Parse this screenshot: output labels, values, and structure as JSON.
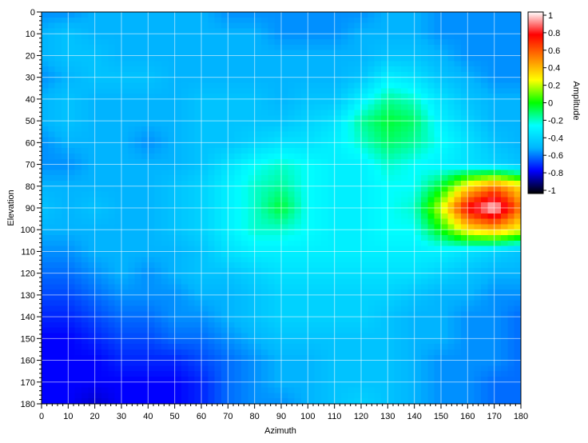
{
  "chart_data": {
    "type": "heatmap",
    "title": "",
    "xlabel": "Azimuth",
    "ylabel": "Elevation",
    "xlim": [
      0,
      180
    ],
    "ylim": [
      0,
      180
    ],
    "y_axis_inverted": true,
    "x_ticks": [
      0,
      10,
      20,
      30,
      40,
      50,
      60,
      70,
      80,
      90,
      100,
      110,
      120,
      130,
      140,
      150,
      160,
      170,
      180
    ],
    "y_ticks": [
      0,
      10,
      20,
      30,
      40,
      50,
      60,
      70,
      80,
      90,
      100,
      110,
      120,
      130,
      140,
      150,
      160,
      170,
      180
    ],
    "grid": true,
    "colorbar": {
      "label": "Amplitude",
      "range": [
        -1,
        1
      ],
      "ticks": [
        "1",
        "0.8",
        "0.6",
        "0.4",
        "0.2",
        "0",
        "-0.2",
        "-0.4",
        "-0.6",
        "-0.8",
        "-1"
      ],
      "colormap": [
        "#000000",
        "#0000ff",
        "#00b4ff",
        "#00ffff",
        "#00ff00",
        "#ffff00",
        "#ff8000",
        "#ff0000",
        "#ffffff"
      ]
    },
    "x_step": 10,
    "y_step": 10,
    "values": [
      [
        -0.55,
        -0.55,
        -0.5,
        -0.5,
        -0.5,
        -0.5,
        -0.5,
        -0.55,
        -0.55,
        -0.55,
        -0.55,
        -0.55,
        -0.55,
        -0.5,
        -0.5,
        -0.55,
        -0.55,
        -0.55,
        -0.55
      ],
      [
        -0.5,
        -0.45,
        -0.5,
        -0.5,
        -0.5,
        -0.5,
        -0.5,
        -0.5,
        -0.5,
        -0.55,
        -0.55,
        -0.55,
        -0.5,
        -0.5,
        -0.5,
        -0.55,
        -0.55,
        -0.55,
        -0.55
      ],
      [
        -0.5,
        -0.45,
        -0.45,
        -0.5,
        -0.5,
        -0.5,
        -0.5,
        -0.5,
        -0.5,
        -0.5,
        -0.5,
        -0.5,
        -0.5,
        -0.45,
        -0.45,
        -0.5,
        -0.55,
        -0.55,
        -0.55
      ],
      [
        -0.55,
        -0.5,
        -0.45,
        -0.45,
        -0.45,
        -0.5,
        -0.5,
        -0.5,
        -0.5,
        -0.5,
        -0.5,
        -0.5,
        -0.45,
        -0.3,
        -0.35,
        -0.45,
        -0.5,
        -0.55,
        -0.55
      ],
      [
        -0.5,
        -0.45,
        -0.5,
        -0.5,
        -0.5,
        -0.5,
        -0.45,
        -0.45,
        -0.45,
        -0.5,
        -0.45,
        -0.45,
        -0.3,
        -0.15,
        -0.2,
        -0.35,
        -0.45,
        -0.5,
        -0.5
      ],
      [
        -0.5,
        -0.45,
        -0.5,
        -0.5,
        -0.5,
        -0.5,
        -0.45,
        -0.45,
        -0.45,
        -0.45,
        -0.4,
        -0.35,
        -0.15,
        -0.05,
        -0.1,
        -0.3,
        -0.4,
        -0.5,
        -0.5
      ],
      [
        -0.55,
        -0.5,
        -0.5,
        -0.5,
        -0.55,
        -0.5,
        -0.45,
        -0.45,
        -0.4,
        -0.35,
        -0.35,
        -0.3,
        -0.2,
        -0.1,
        -0.15,
        -0.25,
        -0.35,
        -0.45,
        -0.5
      ],
      [
        -0.55,
        -0.55,
        -0.5,
        -0.5,
        -0.5,
        -0.5,
        -0.45,
        -0.35,
        -0.25,
        -0.2,
        -0.25,
        -0.3,
        -0.3,
        -0.2,
        -0.25,
        -0.3,
        -0.35,
        -0.4,
        -0.45
      ],
      [
        -0.5,
        -0.5,
        -0.5,
        -0.5,
        -0.5,
        -0.45,
        -0.4,
        -0.3,
        -0.2,
        -0.15,
        -0.25,
        -0.3,
        -0.3,
        -0.25,
        -0.25,
        -0.05,
        0.3,
        0.5,
        0.3
      ],
      [
        -0.45,
        -0.5,
        -0.45,
        -0.5,
        -0.5,
        -0.45,
        -0.4,
        -0.3,
        -0.2,
        -0.05,
        -0.25,
        -0.3,
        -0.3,
        -0.25,
        -0.2,
        0.2,
        0.75,
        1.0,
        0.5
      ],
      [
        -0.5,
        -0.5,
        -0.5,
        -0.5,
        -0.5,
        -0.45,
        -0.4,
        -0.3,
        -0.2,
        -0.2,
        -0.25,
        -0.3,
        -0.3,
        -0.25,
        -0.25,
        0.0,
        0.3,
        0.4,
        0.25
      ],
      [
        -0.55,
        -0.55,
        -0.5,
        -0.5,
        -0.5,
        -0.5,
        -0.45,
        -0.35,
        -0.3,
        -0.3,
        -0.3,
        -0.3,
        -0.3,
        -0.3,
        -0.3,
        -0.3,
        -0.35,
        -0.4,
        -0.45
      ],
      [
        -0.6,
        -0.6,
        -0.55,
        -0.5,
        -0.55,
        -0.5,
        -0.45,
        -0.45,
        -0.4,
        -0.35,
        -0.35,
        -0.35,
        -0.35,
        -0.35,
        -0.35,
        -0.4,
        -0.45,
        -0.5,
        -0.5
      ],
      [
        -0.65,
        -0.65,
        -0.6,
        -0.55,
        -0.55,
        -0.55,
        -0.5,
        -0.5,
        -0.45,
        -0.4,
        -0.4,
        -0.4,
        -0.4,
        -0.4,
        -0.45,
        -0.5,
        -0.5,
        -0.55,
        -0.55
      ],
      [
        -0.7,
        -0.7,
        -0.65,
        -0.6,
        -0.6,
        -0.55,
        -0.55,
        -0.5,
        -0.45,
        -0.4,
        -0.4,
        -0.4,
        -0.4,
        -0.45,
        -0.5,
        -0.5,
        -0.55,
        -0.55,
        -0.6
      ],
      [
        -0.75,
        -0.75,
        -0.7,
        -0.65,
        -0.65,
        -0.6,
        -0.6,
        -0.55,
        -0.5,
        -0.45,
        -0.45,
        -0.45,
        -0.45,
        -0.45,
        -0.5,
        -0.5,
        -0.55,
        -0.55,
        -0.6
      ],
      [
        -0.75,
        -0.75,
        -0.75,
        -0.7,
        -0.7,
        -0.7,
        -0.65,
        -0.6,
        -0.55,
        -0.5,
        -0.5,
        -0.45,
        -0.45,
        -0.45,
        -0.5,
        -0.55,
        -0.55,
        -0.55,
        -0.6
      ],
      [
        -0.75,
        -0.75,
        -0.75,
        -0.75,
        -0.75,
        -0.75,
        -0.7,
        -0.6,
        -0.55,
        -0.5,
        -0.5,
        -0.45,
        -0.45,
        -0.45,
        -0.5,
        -0.55,
        -0.55,
        -0.6,
        -0.6
      ],
      [
        -0.75,
        -0.75,
        -0.8,
        -0.75,
        -0.75,
        -0.75,
        -0.7,
        -0.6,
        -0.55,
        -0.55,
        -0.5,
        -0.45,
        -0.4,
        -0.45,
        -0.5,
        -0.55,
        -0.55,
        -0.6,
        -0.6
      ]
    ]
  }
}
